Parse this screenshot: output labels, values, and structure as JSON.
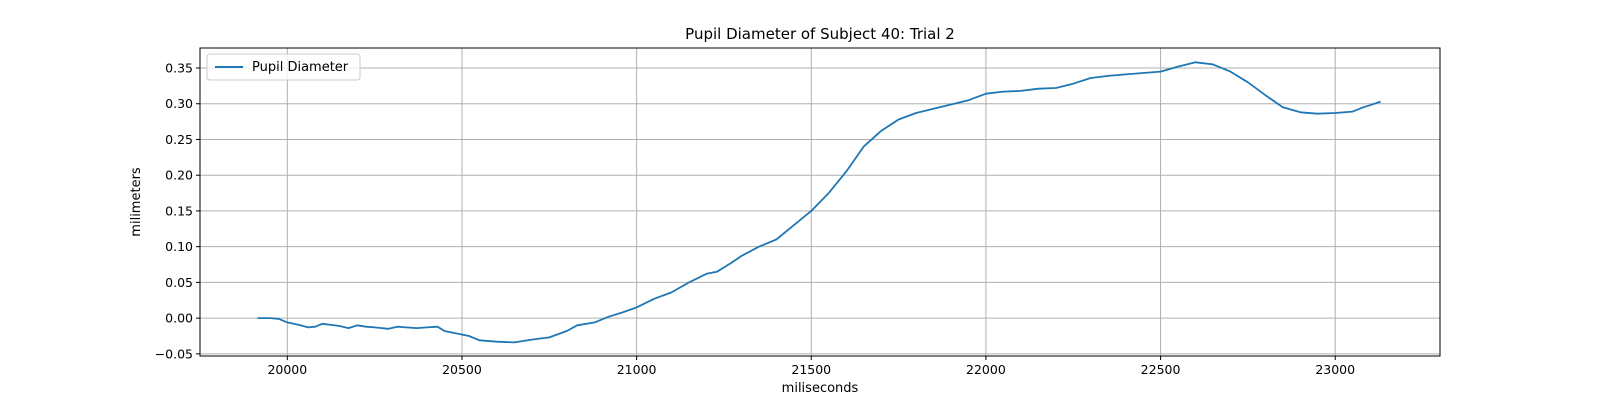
{
  "chart_data": {
    "type": "line",
    "title": "Pupil Diameter of Subject 40: Trial 2",
    "xlabel": "miliseconds",
    "ylabel": "milimeters",
    "xlim": [
      19750,
      23300
    ],
    "ylim": [
      -0.053,
      0.378
    ],
    "xticks": [
      20000,
      20500,
      21000,
      21500,
      22000,
      22500,
      23000
    ],
    "xtick_labels": [
      "20000",
      "20500",
      "21000",
      "21500",
      "22000",
      "22500",
      "23000"
    ],
    "yticks": [
      -0.05,
      0.0,
      0.05,
      0.1,
      0.15,
      0.2,
      0.25,
      0.3,
      0.35
    ],
    "ytick_labels": [
      "−0.05",
      "0.00",
      "0.05",
      "0.10",
      "0.15",
      "0.20",
      "0.25",
      "0.30",
      "0.35"
    ],
    "grid": true,
    "legend_position": "top-left",
    "series": [
      {
        "name": "Pupil Diameter",
        "color": "#1f77b4",
        "x": [
          19915,
          19950,
          19975,
          20000,
          20030,
          20060,
          20080,
          20100,
          20120,
          20150,
          20175,
          20200,
          20225,
          20250,
          20290,
          20315,
          20340,
          20370,
          20400,
          20430,
          20450,
          20480,
          20520,
          20550,
          20600,
          20650,
          20700,
          20750,
          20800,
          20830,
          20880,
          20920,
          20960,
          21000,
          21050,
          21100,
          21150,
          21200,
          21230,
          21270,
          21300,
          21350,
          21400,
          21450,
          21500,
          21550,
          21600,
          21650,
          21700,
          21750,
          21800,
          21850,
          21900,
          21950,
          22000,
          22050,
          22100,
          22150,
          22200,
          22250,
          22300,
          22350,
          22400,
          22450,
          22500,
          22550,
          22600,
          22650,
          22700,
          22750,
          22800,
          22850,
          22900,
          22950,
          23000,
          23050,
          23080,
          23100,
          23130
        ],
        "y": [
          0.0,
          0.0,
          -0.001,
          -0.006,
          -0.009,
          -0.013,
          -0.012,
          -0.008,
          -0.009,
          -0.011,
          -0.014,
          -0.01,
          -0.012,
          -0.013,
          -0.015,
          -0.012,
          -0.013,
          -0.014,
          -0.013,
          -0.012,
          -0.018,
          -0.021,
          -0.025,
          -0.031,
          -0.033,
          -0.034,
          -0.03,
          -0.027,
          -0.018,
          -0.01,
          -0.006,
          0.002,
          0.008,
          0.015,
          0.027,
          0.036,
          0.05,
          0.062,
          0.065,
          0.077,
          0.087,
          0.1,
          0.11,
          0.13,
          0.15,
          0.175,
          0.205,
          0.24,
          0.262,
          0.278,
          0.287,
          0.293,
          0.299,
          0.305,
          0.314,
          0.317,
          0.318,
          0.321,
          0.322,
          0.328,
          0.336,
          0.339,
          0.341,
          0.343,
          0.345,
          0.352,
          0.358,
          0.355,
          0.345,
          0.33,
          0.312,
          0.295,
          0.288,
          0.286,
          0.287,
          0.289,
          0.295,
          0.298,
          0.303
        ]
      }
    ]
  }
}
